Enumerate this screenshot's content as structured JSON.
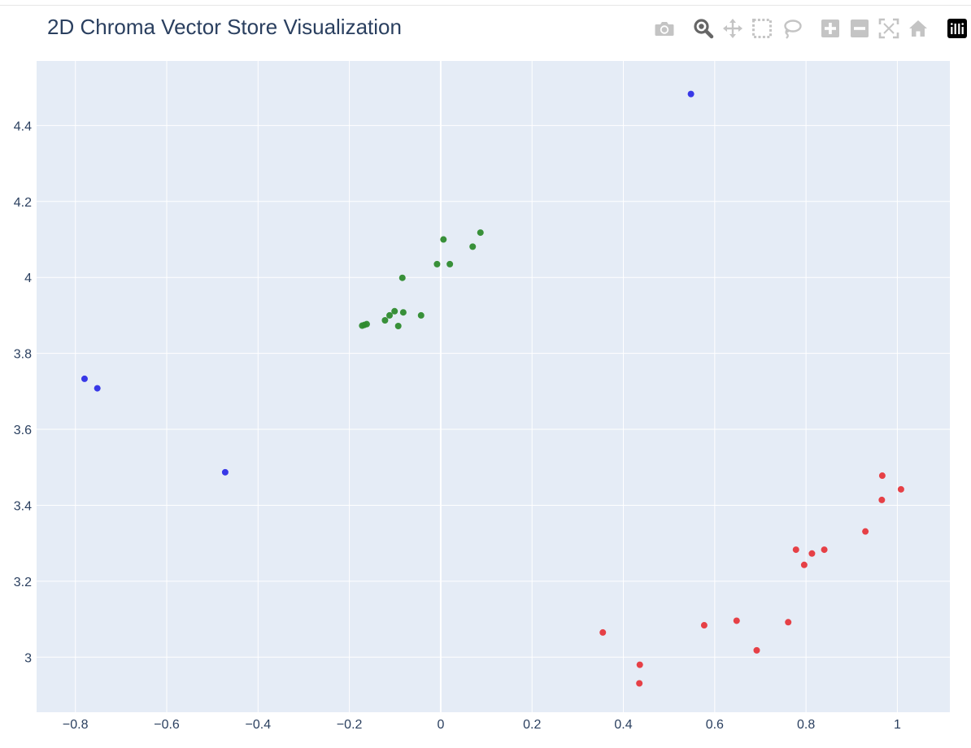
{
  "chart_data": {
    "type": "scatter",
    "title": "2D Chroma Vector Store Visualization",
    "xlabel": "",
    "ylabel": "",
    "xlim": [
      -0.885,
      1.115
    ],
    "ylim": [
      2.855,
      4.57
    ],
    "x_ticks": [
      -0.8,
      -0.6,
      -0.4,
      -0.2,
      0,
      0.2,
      0.4,
      0.6,
      0.8,
      1
    ],
    "x_tick_labels": [
      "−0.8",
      "−0.6",
      "−0.4",
      "−0.2",
      "0",
      "0.2",
      "0.4",
      "0.6",
      "0.8",
      "1"
    ],
    "y_ticks": [
      3,
      3.2,
      3.4,
      3.6,
      3.8,
      4,
      4.2,
      4.4
    ],
    "y_tick_labels": [
      "3",
      "3.2",
      "3.4",
      "3.6",
      "3.8",
      "4",
      "4.2",
      "4.4"
    ],
    "grid": true,
    "plot_background": "#e5ecf6",
    "series": [
      {
        "color": "#2e2ee6",
        "points": [
          [
            -0.78,
            3.733
          ],
          [
            -0.752,
            3.708
          ],
          [
            -0.472,
            3.487
          ],
          [
            0.548,
            4.483
          ]
        ]
      },
      {
        "color": "#2e8b2e",
        "points": [
          [
            -0.172,
            3.873
          ],
          [
            -0.167,
            3.875
          ],
          [
            -0.162,
            3.877
          ],
          [
            -0.122,
            3.887
          ],
          [
            -0.112,
            3.9
          ],
          [
            -0.101,
            3.911
          ],
          [
            -0.093,
            3.872
          ],
          [
            -0.084,
            3.999
          ],
          [
            -0.082,
            3.908
          ],
          [
            -0.043,
            3.9
          ],
          [
            -0.008,
            4.035
          ],
          [
            0.006,
            4.1
          ],
          [
            0.02,
            4.035
          ],
          [
            0.07,
            4.081
          ],
          [
            0.087,
            4.118
          ]
        ]
      },
      {
        "color": "#e6373c",
        "points": [
          [
            0.355,
            3.065
          ],
          [
            0.436,
            2.98
          ],
          [
            0.435,
            2.931
          ],
          [
            0.577,
            3.084
          ],
          [
            0.648,
            3.096
          ],
          [
            0.692,
            3.018
          ],
          [
            0.761,
            3.092
          ],
          [
            0.778,
            3.283
          ],
          [
            0.796,
            3.243
          ],
          [
            0.813,
            3.273
          ],
          [
            0.84,
            3.283
          ],
          [
            0.93,
            3.331
          ],
          [
            0.966,
            3.414
          ],
          [
            0.967,
            3.478
          ],
          [
            1.008,
            3.442
          ]
        ]
      }
    ]
  },
  "modebar": {
    "icons": [
      {
        "name": "camera-icon",
        "tooltip": "Download plot as a png",
        "active": false
      },
      {
        "name": "zoom-icon",
        "tooltip": "Zoom",
        "active": true
      },
      {
        "name": "pan-icon",
        "tooltip": "Pan",
        "active": false
      },
      {
        "name": "box-select-icon",
        "tooltip": "Box Select",
        "active": false
      },
      {
        "name": "lasso-select-icon",
        "tooltip": "Lasso Select",
        "active": false
      },
      {
        "name": "zoom-in-icon",
        "tooltip": "Zoom in",
        "active": false
      },
      {
        "name": "zoom-out-icon",
        "tooltip": "Zoom out",
        "active": false
      },
      {
        "name": "autoscale-icon",
        "tooltip": "Autoscale",
        "active": false
      },
      {
        "name": "reset-axes-icon",
        "tooltip": "Reset axes",
        "active": false
      },
      {
        "name": "plotly-logo-icon",
        "tooltip": "Produced with Plotly.js",
        "active": false
      }
    ],
    "icon_color": "#c4c4c4",
    "active_color": "#666666"
  }
}
